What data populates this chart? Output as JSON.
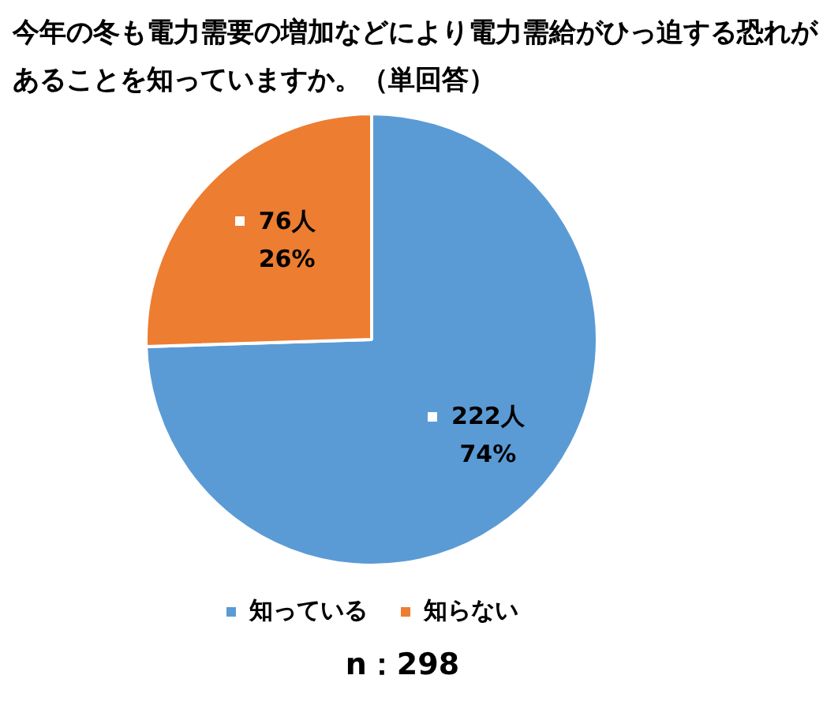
{
  "chart_data": {
    "type": "pie",
    "title": "今年の冬も電力需要の増加などにより電力需給がひっ迫する恐れがあることを知っていますか。（単回答）",
    "categories": [
      "知っている",
      "知らない"
    ],
    "values": [
      222,
      76
    ],
    "colors": [
      "#5b9bd5",
      "#ed7d31"
    ],
    "value_labels": [
      "222人\n74%",
      "76人\n26%"
    ],
    "legend": "bottom",
    "annotations": [
      "n：298"
    ]
  }
}
